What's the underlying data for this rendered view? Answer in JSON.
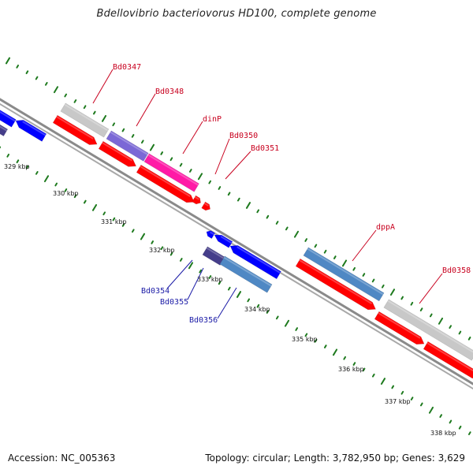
{
  "title": "Bdellovibrio bacteriovorus HD100, complete genome",
  "accession_label": "Accession: NC_005363",
  "summary_label": "Topology: circular; Length: 3,782,950 bp; Genes: 3,629",
  "colors": {
    "backbone": "#888888",
    "tick": "#1e7a1e",
    "gene_red": "#ff0000",
    "gene_blue": "#0000ff",
    "gene_gray": "#c8c8c8",
    "gene_purple": "#7b68d6",
    "gene_magenta": "#ff1aa6",
    "gene_steel": "#4f88c4",
    "gene_navy": "#453e8a",
    "label_red": "#c8001e",
    "label_blue": "#1a1aa6"
  },
  "kbp_ticks": [
    {
      "label": "329 kbp"
    },
    {
      "label": "330 kbp"
    },
    {
      "label": "331 kbp"
    },
    {
      "label": "332 kbp"
    },
    {
      "label": "333 kbp"
    },
    {
      "label": "334 kbp"
    },
    {
      "label": "335 kbp"
    },
    {
      "label": "336 kbp"
    },
    {
      "label": "337 kbp"
    },
    {
      "label": "338 kbp"
    }
  ],
  "gene_labels": [
    {
      "name": "Bd0347",
      "strand": "forward"
    },
    {
      "name": "Bd0348",
      "strand": "forward"
    },
    {
      "name": "dinP",
      "strand": "forward"
    },
    {
      "name": "Bd0350",
      "strand": "forward"
    },
    {
      "name": "Bd0351",
      "strand": "forward"
    },
    {
      "name": "dppA",
      "strand": "forward"
    },
    {
      "name": "Bd0358",
      "strand": "forward"
    },
    {
      "name": "Bd0354",
      "strand": "reverse"
    },
    {
      "name": "Bd0355",
      "strand": "reverse"
    },
    {
      "name": "Bd0356",
      "strand": "reverse"
    }
  ]
}
